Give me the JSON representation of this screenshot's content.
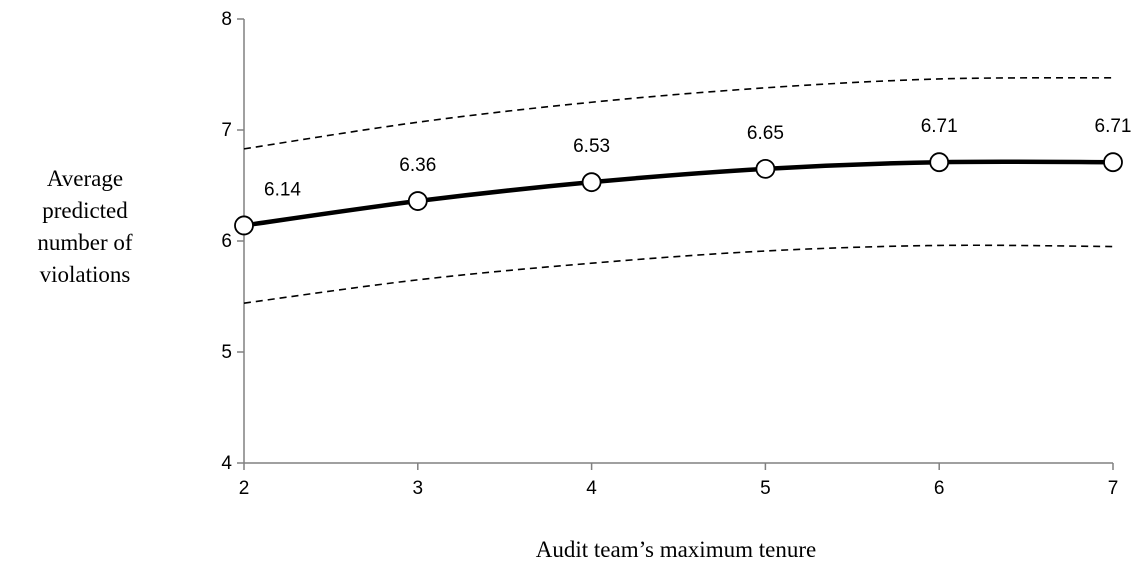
{
  "chart_data": {
    "type": "line",
    "title": "",
    "xlabel": "Audit team’s maximum tenure",
    "ylabel_lines": [
      "Average",
      "predicted",
      "number of",
      "violations"
    ],
    "x": [
      2,
      3,
      4,
      5,
      6,
      7
    ],
    "xlim": [
      2,
      7
    ],
    "ylim": [
      4,
      8
    ],
    "x_ticks": [
      "2",
      "3",
      "4",
      "5",
      "6",
      "7"
    ],
    "y_ticks": [
      "4",
      "5",
      "6",
      "7",
      "8"
    ],
    "grid": false,
    "legend": "none",
    "series": [
      {
        "role": "estimate",
        "style": "solid-with-markers",
        "color": "#000000",
        "values": [
          6.14,
          6.36,
          6.53,
          6.65,
          6.71,
          6.71
        ],
        "labels": [
          "6.14",
          "6.36",
          "6.53",
          "6.65",
          "6.71",
          "6.71"
        ]
      },
      {
        "role": "upper-bound",
        "style": "dashed",
        "color": "#000000",
        "values": [
          6.83,
          7.07,
          7.25,
          7.38,
          7.46,
          7.47
        ]
      },
      {
        "role": "lower-bound",
        "style": "dashed",
        "color": "#000000",
        "values": [
          5.44,
          5.65,
          5.8,
          5.91,
          5.96,
          5.95
        ]
      }
    ]
  }
}
